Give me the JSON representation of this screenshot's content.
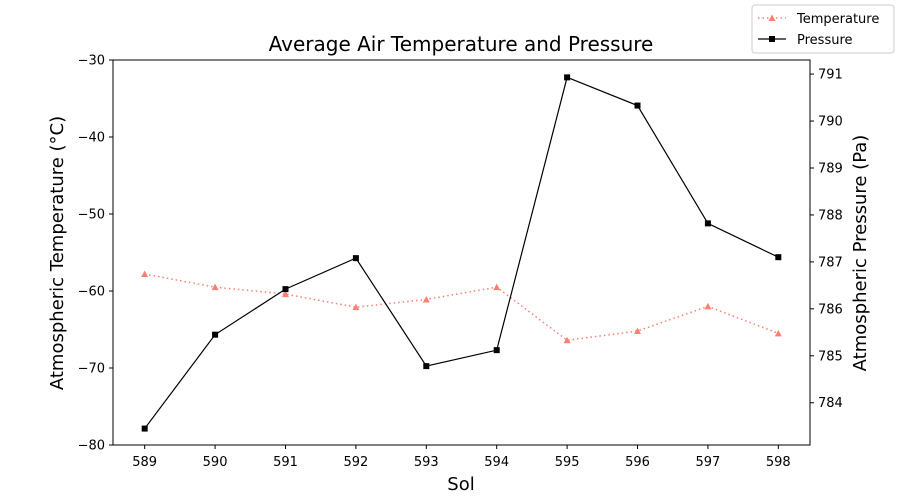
{
  "chart_data": {
    "type": "line",
    "title": "Average Air Temperature and Pressure",
    "xlabel": "Sol",
    "x": [
      589,
      590,
      591,
      592,
      593,
      594,
      595,
      596,
      597,
      598
    ],
    "x_ticks": [
      "589",
      "590",
      "591",
      "592",
      "593",
      "594",
      "595",
      "596",
      "597",
      "598"
    ],
    "xlim": [
      588.55,
      598.45
    ],
    "y_left": {
      "label": "Atmospheric Temperature (°C)",
      "lim": [
        -80,
        -30
      ],
      "ticks": [
        -80,
        -70,
        -60,
        -50,
        -40,
        -30
      ],
      "tick_labels": [
        "−80",
        "−70",
        "−60",
        "−50",
        "−40",
        "−30"
      ]
    },
    "y_right": {
      "label": "Atmospheric Pressure (Pa)",
      "lim": [
        783.1,
        791.3
      ],
      "ticks": [
        784,
        785,
        786,
        787,
        788,
        789,
        790,
        791
      ],
      "tick_labels": [
        "784",
        "785",
        "786",
        "787",
        "788",
        "789",
        "790",
        "791"
      ]
    },
    "series": [
      {
        "name": "Temperature",
        "axis": "left",
        "color": "#fa8072",
        "line_style": "dotted",
        "marker": "triangle",
        "values": [
          -57.8,
          -59.5,
          -60.4,
          -62.1,
          -61.1,
          -59.5,
          -66.4,
          -65.2,
          -62.0,
          -65.5
        ]
      },
      {
        "name": "Pressure",
        "axis": "right",
        "color": "#000000",
        "line_style": "solid",
        "marker": "square",
        "values": [
          783.45,
          785.45,
          786.42,
          787.08,
          784.78,
          785.12,
          790.93,
          790.33,
          787.82,
          787.1
        ]
      }
    ],
    "legend": {
      "placement": "top-right",
      "entries": [
        "Temperature",
        "Pressure"
      ]
    },
    "grid": false
  }
}
